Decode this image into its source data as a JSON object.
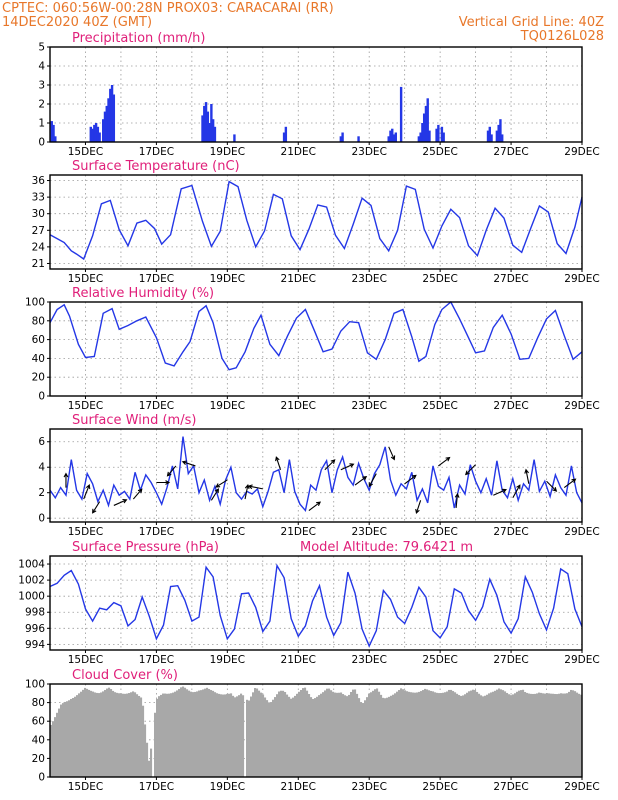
{
  "header": {
    "left_line1": "CPTEC:   060:56W-00:28N   PROX03: CARACARAI (RR)",
    "left_line2": "14DEC2020 40Z (GMT)",
    "right_line1": "Vertical Grid Line: 40Z",
    "right_line2": "TQ0126L028"
  },
  "x_axis": {
    "tick_labels": [
      "15DEC",
      "17DEC",
      "19DEC",
      "21DEC",
      "23DEC",
      "25DEC",
      "27DEC",
      "29DEC"
    ],
    "start_day": 14.0,
    "end_day": 29.0
  },
  "colors": {
    "series": "#2437e6",
    "cloud": "#a8a8a8",
    "title": "#e0207a",
    "header": "#e8772a"
  },
  "chart_data": [
    {
      "type": "bar",
      "title": "Precipitation (mm/h)",
      "ylim": [
        0,
        5
      ],
      "yticks": [
        0,
        1,
        2,
        3,
        4,
        5
      ],
      "x_days": [
        14.05,
        14.1,
        14.15,
        15.15,
        15.2,
        15.25,
        15.3,
        15.35,
        15.4,
        15.5,
        15.55,
        15.6,
        15.65,
        15.7,
        15.75,
        15.8,
        18.3,
        18.35,
        18.4,
        18.45,
        18.5,
        18.55,
        18.6,
        18.65,
        19.2,
        20.6,
        20.65,
        22.2,
        22.25,
        22.7,
        23.55,
        23.6,
        23.65,
        23.7,
        23.75,
        23.9,
        24.4,
        24.45,
        24.5,
        24.55,
        24.6,
        24.65,
        24.7,
        24.9,
        24.95,
        25.05,
        25.1,
        26.35,
        26.4,
        26.45,
        26.6,
        26.65,
        26.7,
        26.75
      ],
      "values": [
        1.1,
        0.9,
        0.3,
        0.8,
        0.7,
        0.9,
        1.0,
        0.8,
        0.5,
        1.2,
        1.6,
        1.9,
        2.3,
        2.8,
        3.0,
        2.5,
        1.4,
        1.9,
        2.1,
        1.6,
        1.0,
        2.0,
        1.2,
        0.8,
        0.4,
        0.5,
        0.8,
        0.3,
        0.5,
        0.3,
        0.3,
        0.6,
        0.7,
        0.4,
        0.5,
        2.9,
        0.3,
        0.5,
        1.0,
        1.5,
        1.9,
        2.3,
        0.6,
        0.7,
        0.9,
        0.8,
        0.5,
        0.6,
        0.8,
        0.4,
        0.6,
        0.9,
        1.2,
        0.4
      ]
    },
    {
      "type": "line",
      "title": "Surface Temperature (nC)",
      "ylim": [
        20,
        37
      ],
      "yticks": [
        21,
        24,
        27,
        30,
        33,
        36
      ],
      "x_days": [
        14.0,
        14.2,
        14.4,
        14.6,
        14.75,
        14.95,
        15.2,
        15.45,
        15.7,
        15.95,
        16.2,
        16.45,
        16.7,
        16.95,
        17.15,
        17.4,
        17.7,
        18.0,
        18.3,
        18.55,
        18.8,
        19.05,
        19.3,
        19.55,
        19.8,
        20.05,
        20.3,
        20.55,
        20.8,
        21.05,
        21.3,
        21.55,
        21.8,
        22.05,
        22.3,
        22.55,
        22.8,
        23.05,
        23.3,
        23.55,
        23.8,
        24.05,
        24.3,
        24.55,
        24.8,
        25.05,
        25.3,
        25.55,
        25.8,
        26.05,
        26.3,
        26.55,
        26.8,
        27.05,
        27.3,
        27.55,
        27.8,
        28.05,
        28.3,
        28.55,
        28.8,
        29.0
      ],
      "values": [
        26.2,
        25.5,
        24.8,
        23.3,
        22.7,
        21.8,
        26.0,
        31.8,
        32.4,
        27.1,
        24.2,
        28.3,
        28.8,
        27.3,
        24.5,
        26.2,
        34.5,
        35.1,
        28.6,
        24.1,
        26.8,
        35.8,
        34.9,
        28.8,
        24.0,
        26.9,
        33.5,
        32.7,
        26.0,
        23.5,
        27.2,
        31.6,
        31.2,
        26.1,
        23.7,
        28.1,
        32.8,
        31.5,
        25.5,
        23.3,
        27.0,
        35.0,
        34.4,
        27.2,
        23.8,
        27.8,
        30.8,
        29.3,
        24.2,
        22.4,
        27.0,
        31.0,
        29.2,
        24.3,
        23.0,
        27.3,
        31.4,
        30.3,
        24.6,
        22.8,
        27.6,
        33.0
      ],
      "peak_note": ""
    },
    {
      "type": "line",
      "title": "Relative Humidity (%)",
      "ylim": [
        0,
        100
      ],
      "yticks": [
        0,
        20,
        40,
        60,
        80,
        100
      ],
      "x_days": [
        14.0,
        14.2,
        14.4,
        14.55,
        14.8,
        15.0,
        15.25,
        15.5,
        15.75,
        15.95,
        16.2,
        16.45,
        16.7,
        17.0,
        17.25,
        17.5,
        17.75,
        17.95,
        18.2,
        18.4,
        18.6,
        18.85,
        19.05,
        19.25,
        19.5,
        19.75,
        19.95,
        20.2,
        20.45,
        20.7,
        20.95,
        21.2,
        21.45,
        21.7,
        21.95,
        22.2,
        22.45,
        22.7,
        22.95,
        23.2,
        23.45,
        23.7,
        23.95,
        24.2,
        24.4,
        24.6,
        24.85,
        25.05,
        25.3,
        25.55,
        25.8,
        26.0,
        26.25,
        26.5,
        26.75,
        27.0,
        27.25,
        27.5,
        27.75,
        28.0,
        28.25,
        28.5,
        28.75,
        29.0
      ],
      "values": [
        78,
        92,
        97,
        85,
        55,
        41,
        42,
        88,
        93,
        71,
        75,
        80,
        84,
        62,
        35,
        32,
        47,
        58,
        90,
        96,
        78,
        40,
        28,
        30,
        47,
        72,
        86,
        55,
        43,
        64,
        83,
        92,
        70,
        47,
        50,
        69,
        79,
        78,
        46,
        39,
        60,
        88,
        92,
        63,
        37,
        42,
        76,
        92,
        100,
        82,
        62,
        46,
        48,
        73,
        86,
        66,
        39,
        40,
        62,
        82,
        91,
        64,
        39,
        47
      ]
    },
    {
      "type": "line",
      "title": "Surface Wind (m/s)",
      "ylim": [
        -0.3,
        7
      ],
      "yticks": [
        0,
        2,
        4,
        6
      ],
      "x_days": [
        14.0,
        14.15,
        14.3,
        14.45,
        14.6,
        14.75,
        14.9,
        15.05,
        15.2,
        15.35,
        15.5,
        15.65,
        15.8,
        15.95,
        16.1,
        16.25,
        16.4,
        16.55,
        16.7,
        16.85,
        17.0,
        17.15,
        17.3,
        17.45,
        17.6,
        17.75,
        17.9,
        18.05,
        18.2,
        18.35,
        18.5,
        18.65,
        18.8,
        18.95,
        19.1,
        19.25,
        19.4,
        19.55,
        19.7,
        19.85,
        20.0,
        20.15,
        20.3,
        20.45,
        20.6,
        20.75,
        20.9,
        21.05,
        21.2,
        21.35,
        21.5,
        21.65,
        21.8,
        21.95,
        22.1,
        22.25,
        22.4,
        22.55,
        22.7,
        22.85,
        23.0,
        23.15,
        23.3,
        23.45,
        23.6,
        23.75,
        23.9,
        24.05,
        24.2,
        24.35,
        24.5,
        24.65,
        24.8,
        24.95,
        25.1,
        25.25,
        25.4,
        25.55,
        25.7,
        25.85,
        26.0,
        26.15,
        26.3,
        26.45,
        26.6,
        26.75,
        26.9,
        27.05,
        27.2,
        27.35,
        27.5,
        27.65,
        27.8,
        27.95,
        28.1,
        28.25,
        28.4,
        28.55,
        28.7,
        28.85,
        29.0
      ],
      "values": [
        2.2,
        1.6,
        2.4,
        1.8,
        4.6,
        2.2,
        1.5,
        3.5,
        2.7,
        1.3,
        2.2,
        1.0,
        2.6,
        1.8,
        2.1,
        1.5,
        3.6,
        2.2,
        3.4,
        2.8,
        2.0,
        1.1,
        2.4,
        4.1,
        2.3,
        6.4,
        3.5,
        4.1,
        2.0,
        3.0,
        1.4,
        2.5,
        1.1,
        3.0,
        4.0,
        2.0,
        1.5,
        2.1,
        1.9,
        2.3,
        0.9,
        2.1,
        3.6,
        3.8,
        2.0,
        4.6,
        2.1,
        1.1,
        0.6,
        2.6,
        2.2,
        3.8,
        4.5,
        2.0,
        3.8,
        4.8,
        3.2,
        2.6,
        4.3,
        3.1,
        2.2,
        3.5,
        4.2,
        5.6,
        3.0,
        1.8,
        2.7,
        2.3,
        3.6,
        1.4,
        2.3,
        1.2,
        4.1,
        2.5,
        2.2,
        3.2,
        0.8,
        2.6,
        1.9,
        4.2,
        2.9,
        2.0,
        3.1,
        1.8,
        4.5,
        2.2,
        1.6,
        3.1,
        1.4,
        2.7,
        2.2,
        4.6,
        2.1,
        2.9,
        1.7,
        3.4,
        2.4,
        1.8,
        4.1,
        2.0,
        1.2
      ],
      "arrows": [
        {
          "day": 14.45,
          "u": 0.0,
          "v": 1.0
        },
        {
          "day": 14.95,
          "u": 0.4,
          "v": 1.0
        },
        {
          "day": 15.4,
          "u": -0.5,
          "v": -0.8
        },
        {
          "day": 15.8,
          "u": 0.9,
          "v": 0.4
        },
        {
          "day": 16.35,
          "u": 0.6,
          "v": 0.7
        },
        {
          "day": 17.0,
          "u": 0.9,
          "v": 0.0
        },
        {
          "day": 17.55,
          "u": -0.6,
          "v": -0.7
        },
        {
          "day": 18.1,
          "u": -0.9,
          "v": 0.3
        },
        {
          "day": 18.55,
          "u": 0.5,
          "v": 0.8
        },
        {
          "day": 19.0,
          "u": -0.8,
          "v": -0.5
        },
        {
          "day": 19.5,
          "u": 0.2,
          "v": 1.0
        },
        {
          "day": 20.0,
          "u": -1.0,
          "v": 0.2
        },
        {
          "day": 20.5,
          "u": -0.3,
          "v": 0.9
        },
        {
          "day": 21.3,
          "u": 0.8,
          "v": 0.6
        },
        {
          "day": 21.75,
          "u": 0.7,
          "v": 0.7
        },
        {
          "day": 22.2,
          "u": 0.9,
          "v": 0.4
        },
        {
          "day": 22.6,
          "u": 0.8,
          "v": 0.6
        },
        {
          "day": 23.2,
          "u": -0.5,
          "v": -0.9
        },
        {
          "day": 23.55,
          "u": 0.4,
          "v": -0.9
        },
        {
          "day": 24.0,
          "u": 0.8,
          "v": 0.6
        },
        {
          "day": 24.45,
          "u": -0.3,
          "v": -0.9
        },
        {
          "day": 24.95,
          "u": 0.8,
          "v": 0.6
        },
        {
          "day": 25.45,
          "u": 0.1,
          "v": 1.0
        },
        {
          "day": 26.0,
          "u": -0.7,
          "v": -0.7
        },
        {
          "day": 26.5,
          "u": 0.9,
          "v": 0.4
        },
        {
          "day": 27.05,
          "u": 0.5,
          "v": 0.9
        },
        {
          "day": 27.5,
          "u": -0.2,
          "v": 1.0
        },
        {
          "day": 28.0,
          "u": 0.7,
          "v": -0.7
        },
        {
          "day": 28.5,
          "u": 0.8,
          "v": 0.6
        }
      ]
    },
    {
      "type": "line",
      "title": "Surface Pressure (hPa)",
      "subtitle": "Model Altitude: 79.6421 m",
      "ylim": [
        993.3,
        1005
      ],
      "yticks": [
        994,
        996,
        998,
        1000,
        1002,
        1004
      ],
      "x_days": [
        14.0,
        14.2,
        14.4,
        14.6,
        14.8,
        15.0,
        15.2,
        15.4,
        15.6,
        15.8,
        16.0,
        16.2,
        16.4,
        16.6,
        16.8,
        17.0,
        17.2,
        17.4,
        17.6,
        17.8,
        18.0,
        18.2,
        18.4,
        18.6,
        18.8,
        19.0,
        19.2,
        19.4,
        19.6,
        19.8,
        20.0,
        20.2,
        20.4,
        20.6,
        20.8,
        21.0,
        21.2,
        21.4,
        21.6,
        21.8,
        22.0,
        22.2,
        22.4,
        22.6,
        22.8,
        23.0,
        23.2,
        23.4,
        23.6,
        23.8,
        24.0,
        24.2,
        24.4,
        24.6,
        24.8,
        25.0,
        25.2,
        25.4,
        25.6,
        25.8,
        26.0,
        26.2,
        26.4,
        26.6,
        26.8,
        27.0,
        27.2,
        27.4,
        27.6,
        27.8,
        28.0,
        28.2,
        28.4,
        28.6,
        28.8,
        29.0
      ],
      "values": [
        1001.2,
        1001.6,
        1002.6,
        1003.2,
        1001.5,
        998.4,
        996.9,
        998.5,
        998.3,
        999.2,
        998.8,
        996.3,
        997.1,
        999.9,
        997.5,
        994.7,
        996.4,
        1001.2,
        1001.3,
        999.5,
        996.9,
        997.4,
        1003.6,
        1002.4,
        997.6,
        994.7,
        995.9,
        1000.3,
        1000.4,
        998.6,
        995.6,
        996.9,
        1003.8,
        1002.3,
        997.2,
        995.0,
        996.3,
        999.4,
        1001.3,
        997.4,
        995.1,
        996.7,
        1003.0,
        1000.4,
        995.9,
        993.8,
        995.7,
        1000.7,
        999.6,
        997.4,
        996.6,
        998.6,
        1001.1,
        999.9,
        995.7,
        994.8,
        996.2,
        1000.9,
        1000.4,
        998.2,
        997.0,
        998.7,
        1002.1,
        1000.1,
        996.8,
        995.4,
        997.2,
        1002.4,
        1000.5,
        997.8,
        995.8,
        998.5,
        1003.4,
        1002.8,
        998.4,
        996.2
      ]
    },
    {
      "type": "area",
      "title": "Cloud Cover (%)",
      "ylim": [
        0,
        100
      ],
      "yticks": [
        0,
        20,
        40,
        60,
        80,
        100
      ],
      "x_days": [
        14.0,
        14.2,
        14.4,
        14.6,
        14.8,
        15.0,
        15.2,
        15.4,
        15.6,
        15.8,
        16.0,
        16.2,
        16.4,
        16.6,
        16.8,
        17.0,
        17.2,
        17.4,
        17.6,
        17.8,
        18.0,
        18.2,
        18.4,
        18.6,
        18.8,
        19.0,
        19.2,
        19.4,
        19.6,
        19.8,
        20.0,
        20.2,
        20.4,
        20.6,
        20.8,
        21.0,
        21.2,
        21.4,
        21.6,
        21.8,
        22.0,
        22.2,
        22.4,
        22.6,
        22.8,
        23.0,
        23.2,
        23.4,
        23.6,
        23.8,
        24.0,
        24.2,
        24.4,
        24.6,
        24.8,
        25.0,
        25.2,
        25.4,
        25.6,
        25.8,
        26.0,
        26.2,
        26.4,
        26.6,
        26.8,
        27.0,
        27.2,
        27.4,
        27.6,
        27.8,
        28.0,
        28.2,
        28.4,
        28.6,
        28.8,
        29.0
      ],
      "values": [
        60,
        72,
        83,
        90,
        94,
        96,
        97,
        96,
        97,
        95,
        96,
        94,
        92,
        90,
        20,
        84,
        94,
        96,
        97,
        98,
        97,
        98,
        96,
        97,
        95,
        92,
        88,
        96,
        86,
        97,
        94,
        85,
        91,
        96,
        90,
        95,
        97,
        89,
        94,
        96,
        95,
        97,
        90,
        96,
        84,
        95,
        96,
        89,
        93,
        95,
        96,
        97,
        96,
        95,
        97,
        96,
        94,
        95,
        93,
        96,
        94,
        92,
        96,
        95,
        97,
        94,
        96,
        93,
        95,
        96,
        90,
        94,
        96,
        93,
        95,
        94
      ],
      "gap_days": [
        16.9,
        19.5
      ]
    }
  ]
}
